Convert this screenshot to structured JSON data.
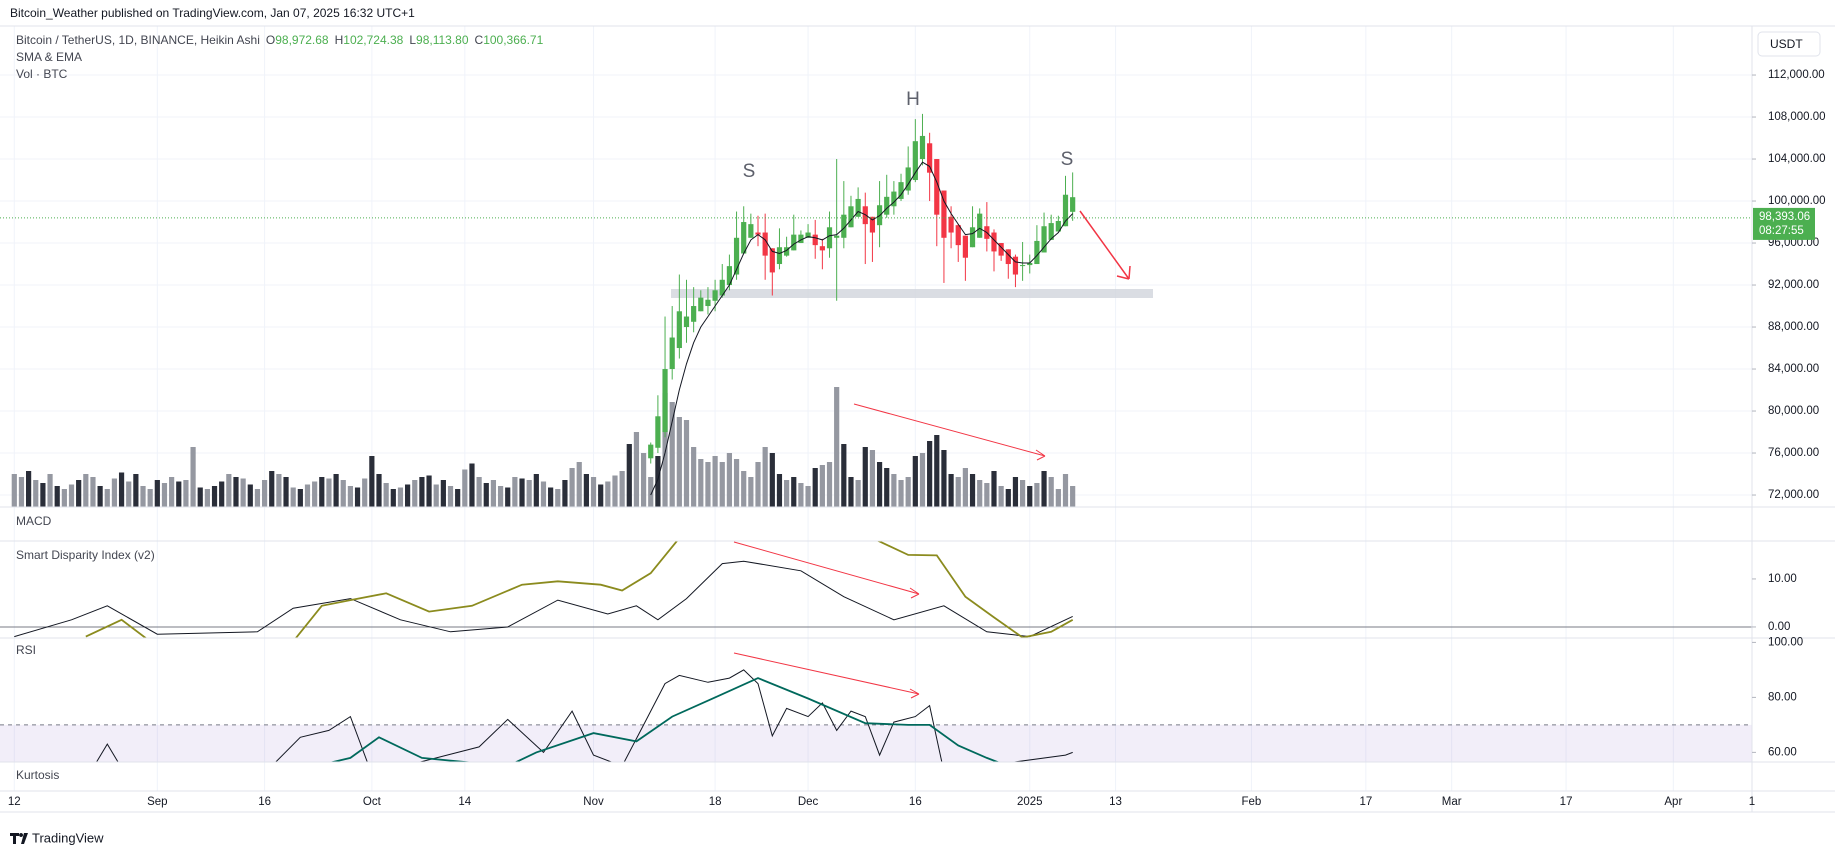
{
  "header": {
    "title": "Bitcoin_Weather published on TradingView.com, Jan 07, 2025 16:32 UTC+1"
  },
  "currency": "USDT",
  "footer": {
    "brand": "TradingView"
  },
  "x_axis": {
    "xlim": [
      "2024-08-10",
      "2025-04-12"
    ],
    "grid": true,
    "xticks": [
      {
        "value": "2024-08-12",
        "label": "12"
      },
      {
        "value": "2024-09-01",
        "label": "Sep"
      },
      {
        "value": "2024-09-16",
        "label": "16"
      },
      {
        "value": "2024-10-01",
        "label": "Oct"
      },
      {
        "value": "2024-10-14",
        "label": "14"
      },
      {
        "value": "2024-11-01",
        "label": "Nov"
      },
      {
        "value": "2024-11-18",
        "label": "18"
      },
      {
        "value": "2024-12-01",
        "label": "Dec"
      },
      {
        "value": "2024-12-16",
        "label": "16"
      },
      {
        "value": "2025-01-01",
        "label": "2025"
      },
      {
        "value": "2025-01-13",
        "label": "13"
      },
      {
        "value": "2025-02-01",
        "label": "Feb"
      },
      {
        "value": "2025-02-17",
        "label": "17"
      },
      {
        "value": "2025-03-01",
        "label": "Mar"
      },
      {
        "value": "2025-03-17",
        "label": "17"
      },
      {
        "value": "2025-04-01",
        "label": "Apr"
      },
      {
        "value": "2025-04-12",
        "label": "1"
      }
    ]
  },
  "chart_data": [
    {
      "type": "candlestick",
      "title": "Bitcoin / TetherUS, 1D, BINANCE, Heikin Ashi",
      "ohlc": [
        {
          "key": "O",
          "value": 98972.68,
          "label": "98,972.68"
        },
        {
          "key": "H",
          "value": 102724.38,
          "label": "102,724.38"
        },
        {
          "key": "L",
          "value": 98113.8,
          "label": "98,113.80"
        },
        {
          "key": "C",
          "value": 100366.71,
          "label": "100,366.71"
        }
      ],
      "indicators": [
        "SMA & EMA",
        "Vol · BTC"
      ],
      "annotations": [
        "S",
        "H",
        "S"
      ],
      "ylim": [
        70860,
        116670
      ],
      "grid": true,
      "yticks": [
        {
          "value": 72000,
          "label": "72,000.00"
        },
        {
          "value": 76000,
          "label": "76,000.00"
        },
        {
          "value": 80000,
          "label": "80,000.00"
        },
        {
          "value": 84000,
          "label": "84,000.00"
        },
        {
          "value": 88000,
          "label": "88,000.00"
        },
        {
          "value": 92000,
          "label": "92,000.00"
        },
        {
          "value": 96000,
          "label": "96,000.00"
        },
        {
          "value": 100000,
          "label": "100,000.00"
        },
        {
          "value": 104000,
          "label": "104,000.00"
        },
        {
          "value": 108000,
          "label": "108,000.00"
        },
        {
          "value": 112000,
          "label": "112,000.00"
        }
      ],
      "up_color": "#4caf50",
      "down_color": "#f23645",
      "start": "2024-11-09",
      "open": [
        75500,
        76500,
        78000,
        84000,
        86000,
        88000,
        88500,
        89500,
        90000,
        90500,
        91000,
        92000,
        93000,
        95000,
        96500,
        97000,
        97000,
        95500,
        94000,
        94800,
        95300,
        96000,
        96500,
        96800,
        95700,
        95500,
        96500,
        96500,
        97500,
        98500,
        99500,
        98500,
        97700,
        98700,
        99500,
        100200,
        101000,
        102000,
        104000,
        105500,
        104000,
        101000,
        98500,
        97700,
        96700,
        95600,
        96500,
        97600,
        97000,
        96000,
        95400,
        94700,
        93900,
        93900,
        94000,
        95100,
        96300,
        97100,
        97600,
        98972.68
      ],
      "high": [
        77000,
        81500,
        89000,
        90000,
        93000,
        92500,
        91800,
        91500,
        91800,
        92500,
        94000,
        94900,
        99000,
        99500,
        98800,
        98600,
        98800,
        95500,
        97400,
        96600,
        98700,
        97200,
        97800,
        98200,
        96400,
        99000,
        104000,
        101900,
        100500,
        101300,
        100800,
        98500,
        101900,
        102500,
        101900,
        102600,
        105200,
        107800,
        108300,
        106500,
        104000,
        101000,
        99500,
        97800,
        96700,
        99500,
        99300,
        99900,
        97300,
        96000,
        95400,
        94900,
        96100,
        94900,
        97700,
        98900,
        98700,
        98600,
        102400,
        102724.38
      ],
      "low": [
        75000,
        76000,
        77500,
        83000,
        85000,
        86500,
        87500,
        89500,
        89200,
        89500,
        90800,
        91500,
        92500,
        95000,
        96500,
        95700,
        92500,
        91000,
        93500,
        94700,
        95300,
        96000,
        96500,
        94500,
        93500,
        94600,
        90500,
        95500,
        97500,
        98500,
        94000,
        94200,
        95600,
        98400,
        98700,
        100000,
        100600,
        101800,
        103400,
        100000,
        95700,
        92200,
        95500,
        94200,
        92400,
        95600,
        96500,
        95200,
        93300,
        94300,
        92600,
        91800,
        92400,
        93100,
        94000,
        95100,
        96300,
        97100,
        97600,
        98113.8
      ],
      "close": [
        76800,
        79500,
        84000,
        87000,
        89500,
        89000,
        90000,
        90800,
        90600,
        91500,
        92500,
        93800,
        96500,
        98000,
        97800,
        96800,
        94800,
        93200,
        95600,
        95600,
        96800,
        96800,
        97000,
        95800,
        95300,
        97500,
        96700,
        98700,
        99500,
        100200,
        97800,
        97000,
        99600,
        100400,
        100900,
        101800,
        103200,
        105700,
        106200,
        102700,
        98700,
        96500,
        97000,
        95800,
        94600,
        97500,
        98800,
        96400,
        95200,
        94800,
        94000,
        93000,
        93900,
        94100,
        96200,
        97600,
        97900,
        98100,
        100600,
        100366.71
      ],
      "ema": {
        "color": "#131722",
        "values": [
          72000,
          73500,
          76000,
          79000,
          82000,
          84500,
          86500,
          88000,
          89000,
          90000,
          91000,
          92000,
          93500,
          95000,
          96300,
          96800,
          96300,
          95200,
          95000,
          95300,
          95900,
          96300,
          96600,
          96500,
          96300,
          96700,
          96800,
          97400,
          98200,
          99000,
          98700,
          98200,
          98600,
          99300,
          99900,
          100600,
          101600,
          102700,
          103700,
          103300,
          101800,
          100000,
          98800,
          97800,
          96800,
          96900,
          97400,
          97000,
          96300,
          95600,
          94900,
          94200,
          94100,
          94100,
          94800,
          95600,
          96400,
          97000,
          98100,
          98800
        ]
      },
      "volume": {
        "start": "2024-08-12",
        "ylim": [
          0,
          100
        ],
        "color": "#9598a1",
        "dark_color": "#2a2e39",
        "values": [
          22,
          20,
          24,
          18,
          16,
          22,
          14,
          12,
          15,
          18,
          22,
          20,
          14,
          12,
          19,
          23,
          17,
          22,
          14,
          12,
          18,
          16,
          20,
          17,
          18,
          40,
          13,
          12,
          14,
          17,
          22,
          20,
          19,
          15,
          12,
          18,
          24,
          22,
          20,
          13,
          12,
          15,
          17,
          20,
          19,
          22,
          18,
          14,
          13,
          19,
          34,
          22,
          16,
          12,
          13,
          15,
          18,
          20,
          21,
          15,
          18,
          14,
          12,
          25,
          29,
          20,
          16,
          18,
          14,
          13,
          20,
          19,
          18,
          22,
          17,
          13,
          12,
          18,
          26,
          30,
          22,
          20,
          15,
          17,
          21,
          24,
          42,
          50,
          36,
          20,
          34,
          76,
          70,
          60,
          58,
          40,
          32,
          30,
          34,
          30,
          36,
          32,
          24,
          20,
          30,
          40,
          36,
          22,
          18,
          20,
          16,
          14,
          26,
          28,
          30,
          80,
          42,
          20,
          18,
          40,
          38,
          30,
          26,
          22,
          18,
          20,
          34,
          36,
          44,
          48,
          38,
          22,
          20,
          26,
          22,
          18,
          16,
          24,
          14,
          12,
          20,
          18,
          14,
          16,
          24,
          20,
          12,
          22,
          14
        ],
        "dark": [
          2,
          4,
          6,
          9,
          12,
          15,
          17,
          20,
          23,
          26,
          28,
          29,
          31,
          33,
          36,
          38,
          40,
          43,
          45,
          48,
          50,
          51,
          53,
          55,
          57,
          58,
          60,
          62,
          64,
          66,
          69,
          71,
          73,
          75,
          77,
          80,
          82,
          86,
          90,
          106,
          107,
          109,
          112,
          116,
          117,
          119,
          121,
          122,
          126,
          128,
          129,
          130,
          131,
          134,
          137,
          139,
          140,
          142,
          144
        ]
      },
      "last_price": {
        "value": 98393.06,
        "label": "98,393.06"
      },
      "countdown": "08:27:55"
    },
    {
      "type": "indicator",
      "title": "MACD"
    },
    {
      "type": "line",
      "title": "Smart Disparity Index (v2)",
      "ylim": [
        -2.3,
        17.9
      ],
      "yticks": [
        {
          "value": 0,
          "label": "0.00"
        },
        {
          "value": 10,
          "label": "10.00"
        }
      ],
      "series": [
        {
          "color": "#131722",
          "x": [
            "2024-08-12",
            "2024-08-20",
            "2024-08-25",
            "2024-09-01",
            "2024-09-15",
            "2024-09-20",
            "2024-09-28",
            "2024-10-05",
            "2024-10-12",
            "2024-10-20",
            "2024-10-27",
            "2024-11-03",
            "2024-11-07",
            "2024-11-10",
            "2024-11-14",
            "2024-11-19",
            "2024-11-22",
            "2024-11-30",
            "2024-12-06",
            "2024-12-13",
            "2024-12-20",
            "2024-12-26",
            "2025-01-01",
            "2025-01-07"
          ],
          "values": [
            -2,
            1.5,
            4.4,
            -1.5,
            -1,
            3.9,
            5.9,
            1.5,
            -1,
            0,
            5.6,
            2.7,
            4.4,
            1.5,
            5.9,
            13.2,
            13.7,
            11.7,
            6.3,
            1.5,
            4.4,
            -1,
            -2,
            2.2
          ]
        },
        {
          "color": "#8b8b1e",
          "x": [
            "2024-08-22",
            "2024-08-27",
            "2024-08-31",
            "2024-09-20",
            "2024-09-24",
            "2024-09-28",
            "2024-10-03",
            "2024-10-09",
            "2024-10-15",
            "2024-10-22",
            "2024-10-27",
            "2024-11-02",
            "2024-11-05",
            "2024-11-09",
            "2024-11-13",
            "2024-12-10",
            "2024-12-15",
            "2024-12-19",
            "2024-12-23",
            "2024-12-27",
            "2024-12-31",
            "2025-01-04",
            "2025-01-07"
          ],
          "values": [
            -2,
            1.5,
            -3,
            -3,
            4.4,
            5.6,
            7,
            3.2,
            4.4,
            8.8,
            9.5,
            8.8,
            7.6,
            11.2,
            18.5,
            18.5,
            15,
            14.9,
            6.3,
            2,
            -2.2,
            -1,
            1.5
          ]
        }
      ]
    },
    {
      "type": "line",
      "title": "RSI",
      "ylim": [
        56.5,
        101.6
      ],
      "bands": [
        30,
        70
      ],
      "band_color": "#7e57c2",
      "yticks": [
        {
          "value": 60,
          "label": "60.00"
        },
        {
          "value": 80,
          "label": "80.00"
        },
        {
          "value": 100,
          "label": "100.00"
        }
      ],
      "series": [
        {
          "color": "#131722",
          "x": [
            "2024-08-22",
            "2024-08-25",
            "2024-08-28",
            "2024-09-17",
            "2024-09-21",
            "2024-09-25",
            "2024-09-28",
            "2024-10-01",
            "2024-10-16",
            "2024-10-20",
            "2024-10-25",
            "2024-10-29",
            "2024-11-01",
            "2024-11-05",
            "2024-11-08",
            "2024-11-11",
            "2024-11-13",
            "2024-11-17",
            "2024-11-20",
            "2024-11-22",
            "2024-11-24",
            "2024-11-26",
            "2024-11-28",
            "2024-12-01",
            "2024-12-03",
            "2024-12-05",
            "2024-12-07",
            "2024-12-09",
            "2024-12-11",
            "2024-12-13",
            "2024-12-16",
            "2024-12-18",
            "2024-12-20",
            "2025-01-06",
            "2025-01-07"
          ],
          "values": [
            50,
            63,
            50,
            55,
            65.5,
            68,
            73,
            52,
            62,
            72,
            60,
            75,
            59,
            55,
            70,
            85,
            88,
            85.5,
            87,
            90,
            85,
            66,
            76,
            73,
            78,
            68,
            75,
            73,
            59,
            71,
            73,
            77,
            53,
            59,
            60
          ]
        },
        {
          "color": "#00695c",
          "x": [
            "2024-09-15",
            "2024-09-28",
            "2024-10-02",
            "2024-10-08",
            "2024-10-20",
            "2024-10-24",
            "2024-11-01",
            "2024-11-07",
            "2024-11-12",
            "2024-11-18",
            "2024-11-24",
            "2024-12-01",
            "2024-12-09",
            "2024-12-15",
            "2024-12-18",
            "2024-12-22",
            "2024-12-26",
            "2024-12-30",
            "2025-01-05"
          ],
          "values": [
            50,
            58,
            65.5,
            58,
            55,
            60,
            67,
            64,
            73,
            80,
            87,
            79.6,
            70.6,
            70,
            70,
            62.5,
            58,
            54,
            50
          ]
        }
      ]
    },
    {
      "type": "indicator",
      "title": "Kurtosis"
    }
  ]
}
